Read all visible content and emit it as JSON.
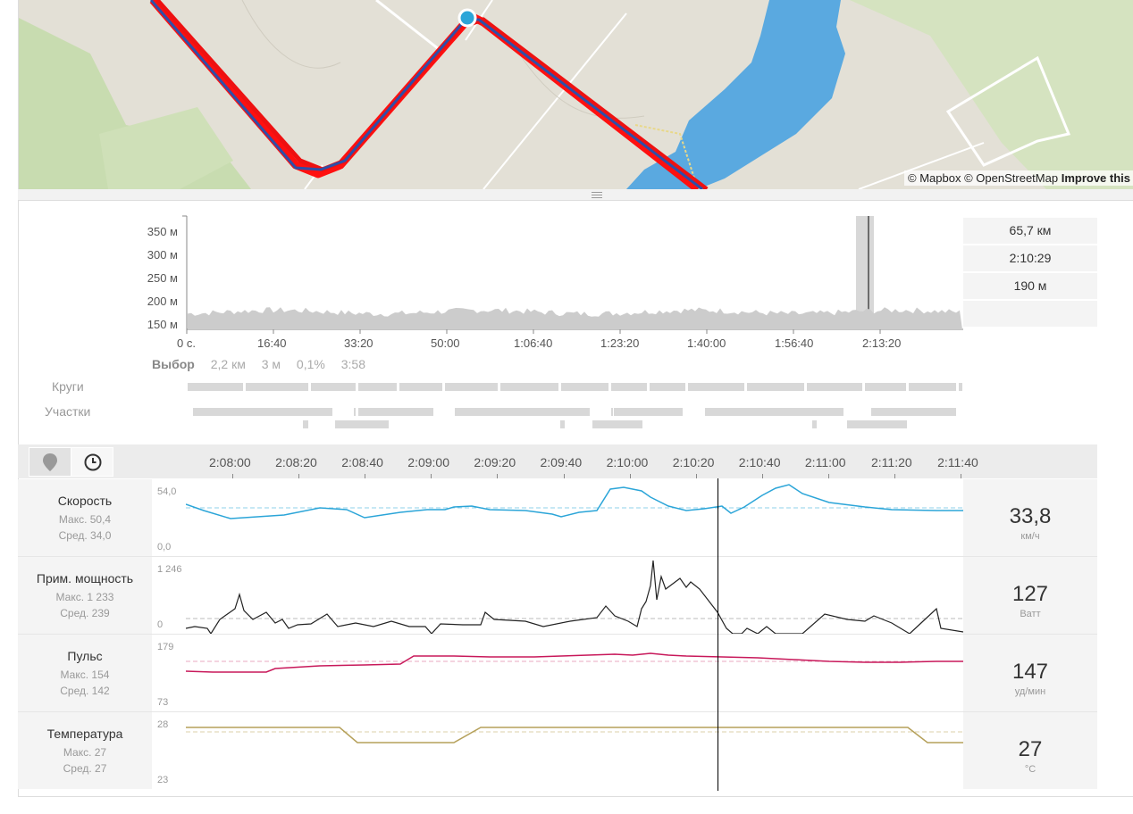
{
  "map": {
    "attribution_mapbox": "© Mapbox",
    "attribution_osm": "© OpenStreetMap",
    "attribution_improve": "Improve this",
    "track_color": "#ff0000",
    "route_color": "#2e4fa8",
    "water_color": "#5aa9e0",
    "park_color": "#c8dcb0"
  },
  "overview": {
    "y_labels": [
      "350 м",
      "300 м",
      "250 м",
      "200 м",
      "150 м"
    ],
    "x_labels": [
      "0 с.",
      "16:40",
      "33:20",
      "50:00",
      "1:06:40",
      "1:23:20",
      "1:40:00",
      "1:56:40",
      "2:13:20"
    ],
    "summary": [
      "65,7 км",
      "2:10:29",
      "190 м",
      ""
    ],
    "selection": {
      "label": "Выбор",
      "distance": "2,2 км",
      "elevation": "3 м",
      "grade": "0,1%",
      "duration": "3:58"
    },
    "laps_label": "Круги",
    "segments_label": "Участки"
  },
  "detail": {
    "location_mode": "location-pin-icon",
    "time_mode": "clock-icon",
    "time_labels": [
      "2:08:00",
      "2:08:20",
      "2:08:40",
      "2:09:00",
      "2:09:20",
      "2:09:40",
      "2:10:00",
      "2:10:20",
      "2:10:40",
      "2:11:00",
      "2:11:20",
      "2:11:40"
    ]
  },
  "panels": [
    {
      "name": "Скорость",
      "max": "Макс. 50,4",
      "avg": "Сред. 34,0",
      "axis_top": "54,0",
      "axis_bottom": "0,0",
      "value": "33,8",
      "unit": "км/ч",
      "color": "#2ba5d8"
    },
    {
      "name": "Прим. мощность",
      "max": "Макс. 1 233",
      "avg": "Сред. 239",
      "axis_top": "1 246",
      "axis_bottom": "0",
      "value": "127",
      "unit": "Ватт",
      "color": "#222222"
    },
    {
      "name": "Пульс",
      "max": "Макс. 154",
      "avg": "Сред. 142",
      "axis_top": "179",
      "axis_bottom": "73",
      "value": "147",
      "unit": "уд/мин",
      "color": "#c8185a"
    },
    {
      "name": "Температура",
      "max": "Макс. 27",
      "avg": "Сред. 27",
      "axis_top": "28",
      "axis_bottom": "23",
      "value": "27",
      "unit": "°C",
      "color": "#b5a05a"
    }
  ]
}
